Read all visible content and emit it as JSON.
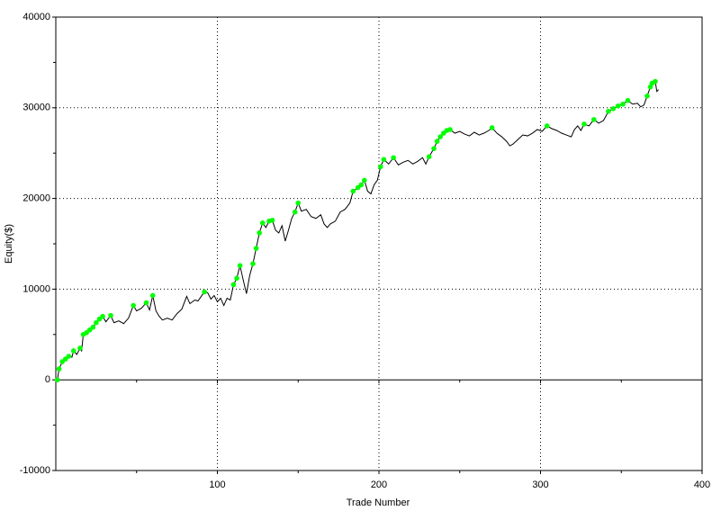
{
  "chart_data": {
    "type": "line",
    "xlabel": "Trade Number",
    "ylabel": "Equity($)",
    "xlim": [
      0,
      400
    ],
    "ylim": [
      -10000,
      40000
    ],
    "xticks": [
      100,
      200,
      300,
      400
    ],
    "yticks": [
      -10000,
      0,
      10000,
      20000,
      30000,
      40000
    ],
    "xminor_ticks": [
      50,
      150,
      250,
      350
    ],
    "yminor_ticks": [
      -5000,
      5000,
      15000,
      25000,
      35000
    ],
    "grid": true,
    "series": [
      {
        "color": "#000000",
        "style": "line",
        "x": [
          1,
          2,
          4,
          6,
          8,
          10,
          11,
          13,
          15,
          16,
          17,
          19,
          21,
          23,
          25,
          27,
          29,
          31,
          34,
          36,
          39,
          42,
          45,
          48,
          50,
          53,
          56,
          58,
          60,
          62,
          64,
          66,
          69,
          72,
          75,
          78,
          81,
          83,
          86,
          88,
          90,
          92,
          94,
          96,
          98,
          100,
          102,
          104,
          106,
          108,
          110,
          112,
          114,
          116,
          118,
          120,
          122,
          124,
          126,
          128,
          130,
          132,
          134,
          136,
          138,
          140,
          142,
          144,
          146,
          148,
          150,
          152,
          155,
          158,
          161,
          164,
          166,
          168,
          170,
          173,
          176,
          179,
          182,
          184,
          187,
          189,
          191,
          193,
          195,
          197,
          199,
          201,
          203,
          206,
          209,
          212,
          215,
          218,
          221,
          224,
          227,
          229,
          231,
          234,
          236,
          238,
          240,
          242,
          244,
          247,
          250,
          253,
          256,
          259,
          262,
          265,
          268,
          270,
          273,
          276,
          279,
          281,
          283,
          286,
          289,
          292,
          295,
          298,
          301,
          304,
          307,
          310,
          313,
          316,
          319,
          321,
          323,
          325,
          327,
          330,
          333,
          336,
          339,
          342,
          345,
          348,
          351,
          354,
          357,
          360,
          362,
          364,
          366,
          368,
          369,
          371,
          372,
          373
        ],
        "values": [
          0,
          1200,
          2000,
          2300,
          2600,
          2500,
          3200,
          2800,
          3500,
          3200,
          5000,
          5200,
          5500,
          5800,
          6300,
          6700,
          7000,
          6400,
          7100,
          6300,
          6500,
          6200,
          6800,
          8200,
          7600,
          7900,
          8500,
          7700,
          9300,
          7600,
          7000,
          6600,
          6800,
          6600,
          7300,
          7800,
          9200,
          8400,
          8800,
          8700,
          9200,
          9700,
          9600,
          8900,
          9300,
          8600,
          9000,
          8200,
          9000,
          8800,
          10500,
          11200,
          12600,
          11000,
          9500,
          11500,
          12800,
          14500,
          16200,
          17300,
          16800,
          17500,
          17600,
          16500,
          16200,
          17000,
          15300,
          16500,
          17800,
          18500,
          19500,
          18600,
          18800,
          18000,
          17800,
          18200,
          17200,
          16800,
          17200,
          17500,
          18500,
          18800,
          19500,
          20800,
          21200,
          21500,
          22000,
          20800,
          20500,
          21500,
          22000,
          23500,
          24300,
          23800,
          24500,
          23700,
          24000,
          24200,
          23800,
          24100,
          24500,
          23800,
          24600,
          25500,
          26300,
          26800,
          27200,
          27500,
          27600,
          27200,
          27400,
          27100,
          26900,
          27300,
          27000,
          27200,
          27500,
          27800,
          27200,
          26800,
          26300,
          25800,
          26000,
          26500,
          27000,
          26900,
          27200,
          27600,
          27400,
          28000,
          27700,
          27500,
          27200,
          27000,
          26800,
          27600,
          28000,
          27500,
          28200,
          28000,
          28700,
          28300,
          28600,
          29600,
          29900,
          30200,
          30400,
          30800,
          30400,
          30500,
          30100,
          30300,
          31300,
          32300,
          32700,
          32900,
          31800,
          32000
        ]
      },
      {
        "color": "#00ff00",
        "style": "markers",
        "x": [
          1,
          2,
          4,
          6,
          8,
          11,
          15,
          17,
          19,
          21,
          23,
          25,
          27,
          29,
          34,
          48,
          56,
          60,
          92,
          110,
          112,
          114,
          122,
          124,
          126,
          128,
          132,
          134,
          148,
          150,
          184,
          187,
          189,
          191,
          201,
          203,
          209,
          231,
          234,
          236,
          238,
          240,
          242,
          244,
          270,
          304,
          327,
          333,
          342,
          345,
          348,
          351,
          354,
          366,
          368,
          369,
          371
        ],
        "values": [
          0,
          1200,
          2000,
          2300,
          2600,
          3200,
          3500,
          5000,
          5200,
          5500,
          5800,
          6300,
          6700,
          7000,
          7100,
          8200,
          8500,
          9300,
          9700,
          10500,
          11200,
          12600,
          12800,
          14500,
          16200,
          17300,
          17500,
          17600,
          18500,
          19500,
          20800,
          21200,
          21500,
          22000,
          23500,
          24300,
          24500,
          24600,
          25500,
          26300,
          26800,
          27200,
          27500,
          27600,
          27800,
          28000,
          28200,
          28700,
          29600,
          29900,
          30200,
          30400,
          30800,
          31300,
          32300,
          32700,
          32900
        ]
      }
    ]
  }
}
